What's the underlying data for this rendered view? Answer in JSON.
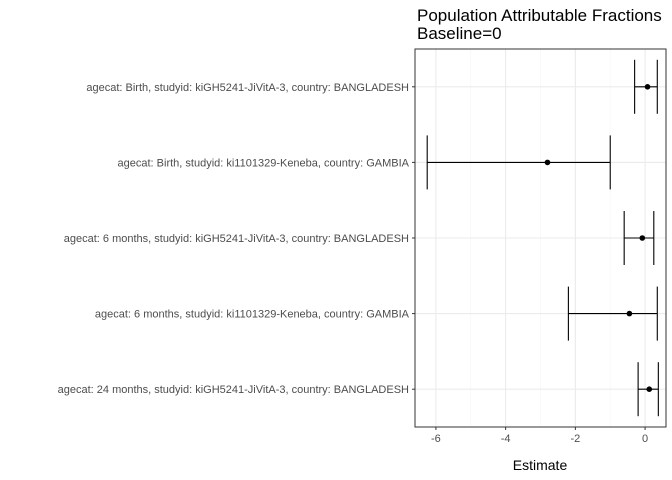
{
  "chart_data": {
    "type": "forest",
    "title_lines": [
      "Population Attributable Fractions",
      "Baseline=0"
    ],
    "xlabel": "Estimate",
    "ylabel": "",
    "xlim": [
      -6.6,
      0.6
    ],
    "xticks": [
      -6,
      -4,
      -2,
      0
    ],
    "xtick_labels": [
      "-6",
      "-4",
      "-2",
      "0"
    ],
    "grid": true,
    "colors": {
      "panel_border": "#333333",
      "grid_major": "#ebebeb",
      "grid_minor": "#f5f5f5",
      "mark": "#000000"
    },
    "rows": [
      {
        "label": "agecat: Birth, studyid: kiGH5241-JiVitA-3, country: BANGLADESH",
        "estimate": 0.07,
        "lower": -0.3,
        "upper": 0.35
      },
      {
        "label": "agecat: Birth, studyid: ki1101329-Keneba, country: GAMBIA",
        "estimate": -2.8,
        "lower": -6.25,
        "upper": -1.0
      },
      {
        "label": "agecat: 6 months, studyid: kiGH5241-JiVitA-3, country: BANGLADESH",
        "estimate": -0.08,
        "lower": -0.6,
        "upper": 0.25
      },
      {
        "label": "agecat: 6 months, studyid: ki1101329-Keneba, country: GAMBIA",
        "estimate": -0.45,
        "lower": -2.2,
        "upper": 0.35
      },
      {
        "label": "agecat: 24 months, studyid: kiGH5241-JiVitA-3, country: BANGLADESH",
        "estimate": 0.12,
        "lower": -0.2,
        "upper": 0.38
      }
    ]
  }
}
